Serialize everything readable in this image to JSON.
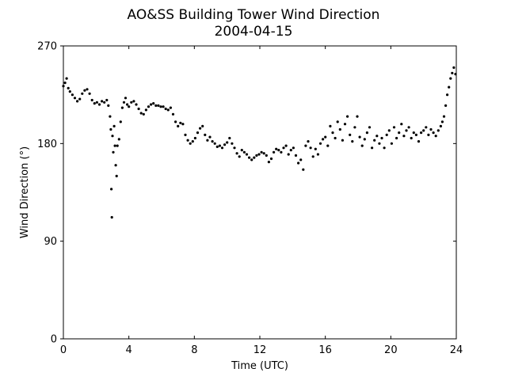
{
  "chart_data": {
    "type": "scatter",
    "title": "AO&SS Building Tower Wind Direction",
    "subtitle": "2004-04-15",
    "xlabel": "Time (UTC)",
    "ylabel": "Wind Direction (°)",
    "xlim": [
      0,
      24
    ],
    "ylim": [
      0,
      270
    ],
    "x_ticks": [
      0,
      4,
      8,
      12,
      16,
      20,
      24
    ],
    "y_ticks": [
      0,
      90,
      180,
      270
    ],
    "grid": false,
    "legend": "none",
    "marker_color": "#000000",
    "series": [
      {
        "points": [
          [
            0.0,
            233
          ],
          [
            0.1,
            236
          ],
          [
            0.2,
            240
          ],
          [
            0.3,
            231
          ],
          [
            0.4,
            228
          ],
          [
            0.55,
            225
          ],
          [
            0.7,
            222
          ],
          [
            0.85,
            219
          ],
          [
            1.0,
            221
          ],
          [
            1.15,
            226
          ],
          [
            1.3,
            229
          ],
          [
            1.45,
            230
          ],
          [
            1.6,
            226
          ],
          [
            1.75,
            220
          ],
          [
            1.9,
            217
          ],
          [
            2.05,
            218
          ],
          [
            2.2,
            216
          ],
          [
            2.35,
            219
          ],
          [
            2.5,
            218
          ],
          [
            2.65,
            220
          ],
          [
            2.75,
            215
          ],
          [
            2.85,
            205
          ],
          [
            2.9,
            193
          ],
          [
            2.93,
            138
          ],
          [
            2.96,
            112
          ],
          [
            3.0,
            187
          ],
          [
            3.05,
            172
          ],
          [
            3.1,
            196
          ],
          [
            3.15,
            178
          ],
          [
            3.2,
            160
          ],
          [
            3.25,
            150
          ],
          [
            3.3,
            178
          ],
          [
            3.4,
            184
          ],
          [
            3.5,
            200
          ],
          [
            3.6,
            213
          ],
          [
            3.7,
            218
          ],
          [
            3.8,
            222
          ],
          [
            3.9,
            216
          ],
          [
            4.0,
            214
          ],
          [
            4.15,
            218
          ],
          [
            4.3,
            219
          ],
          [
            4.45,
            216
          ],
          [
            4.6,
            212
          ],
          [
            4.75,
            208
          ],
          [
            4.9,
            207
          ],
          [
            5.05,
            211
          ],
          [
            5.2,
            214
          ],
          [
            5.35,
            216
          ],
          [
            5.5,
            217
          ],
          [
            5.65,
            215
          ],
          [
            5.8,
            215
          ],
          [
            5.95,
            214
          ],
          [
            6.1,
            214
          ],
          [
            6.25,
            212
          ],
          [
            6.4,
            211
          ],
          [
            6.55,
            213
          ],
          [
            6.7,
            207
          ],
          [
            6.85,
            200
          ],
          [
            7.0,
            196
          ],
          [
            7.15,
            199
          ],
          [
            7.3,
            198
          ],
          [
            7.45,
            188
          ],
          [
            7.6,
            183
          ],
          [
            7.75,
            180
          ],
          [
            7.9,
            182
          ],
          [
            8.05,
            185
          ],
          [
            8.2,
            190
          ],
          [
            8.35,
            194
          ],
          [
            8.5,
            196
          ],
          [
            8.65,
            188
          ],
          [
            8.8,
            183
          ],
          [
            8.95,
            186
          ],
          [
            9.1,
            182
          ],
          [
            9.25,
            180
          ],
          [
            9.4,
            177
          ],
          [
            9.55,
            178
          ],
          [
            9.7,
            176
          ],
          [
            9.85,
            179
          ],
          [
            10.0,
            181
          ],
          [
            10.15,
            185
          ],
          [
            10.3,
            180
          ],
          [
            10.45,
            176
          ],
          [
            10.6,
            171
          ],
          [
            10.75,
            168
          ],
          [
            10.9,
            174
          ],
          [
            11.05,
            172
          ],
          [
            11.2,
            170
          ],
          [
            11.35,
            167
          ],
          [
            11.5,
            165
          ],
          [
            11.65,
            167
          ],
          [
            11.8,
            169
          ],
          [
            11.95,
            170
          ],
          [
            12.1,
            172
          ],
          [
            12.25,
            171
          ],
          [
            12.4,
            169
          ],
          [
            12.55,
            163
          ],
          [
            12.7,
            166
          ],
          [
            12.85,
            172
          ],
          [
            13.0,
            175
          ],
          [
            13.15,
            174
          ],
          [
            13.3,
            172
          ],
          [
            13.45,
            176
          ],
          [
            13.6,
            178
          ],
          [
            13.75,
            170
          ],
          [
            13.9,
            174
          ],
          [
            14.05,
            176
          ],
          [
            14.2,
            169
          ],
          [
            14.35,
            162
          ],
          [
            14.5,
            165
          ],
          [
            14.65,
            156
          ],
          [
            14.8,
            178
          ],
          [
            14.95,
            182
          ],
          [
            15.1,
            176
          ],
          [
            15.25,
            168
          ],
          [
            15.4,
            175
          ],
          [
            15.55,
            170
          ],
          [
            15.7,
            180
          ],
          [
            15.85,
            184
          ],
          [
            16.0,
            186
          ],
          [
            16.15,
            178
          ],
          [
            16.3,
            196
          ],
          [
            16.45,
            190
          ],
          [
            16.6,
            185
          ],
          [
            16.75,
            200
          ],
          [
            16.9,
            193
          ],
          [
            17.05,
            183
          ],
          [
            17.2,
            198
          ],
          [
            17.35,
            205
          ],
          [
            17.5,
            188
          ],
          [
            17.65,
            182
          ],
          [
            17.8,
            195
          ],
          [
            17.95,
            205
          ],
          [
            18.1,
            186
          ],
          [
            18.25,
            178
          ],
          [
            18.4,
            184
          ],
          [
            18.55,
            190
          ],
          [
            18.7,
            195
          ],
          [
            18.85,
            176
          ],
          [
            19.0,
            183
          ],
          [
            19.15,
            187
          ],
          [
            19.3,
            180
          ],
          [
            19.45,
            185
          ],
          [
            19.6,
            176
          ],
          [
            19.75,
            188
          ],
          [
            19.9,
            192
          ],
          [
            20.05,
            180
          ],
          [
            20.2,
            195
          ],
          [
            20.35,
            185
          ],
          [
            20.5,
            190
          ],
          [
            20.65,
            198
          ],
          [
            20.8,
            187
          ],
          [
            20.95,
            192
          ],
          [
            21.1,
            195
          ],
          [
            21.25,
            185
          ],
          [
            21.4,
            190
          ],
          [
            21.55,
            188
          ],
          [
            21.7,
            182
          ],
          [
            21.85,
            190
          ],
          [
            22.0,
            192
          ],
          [
            22.15,
            195
          ],
          [
            22.3,
            188
          ],
          [
            22.45,
            193
          ],
          [
            22.6,
            190
          ],
          [
            22.75,
            187
          ],
          [
            22.9,
            192
          ],
          [
            23.05,
            196
          ],
          [
            23.15,
            200
          ],
          [
            23.25,
            205
          ],
          [
            23.35,
            215
          ],
          [
            23.45,
            225
          ],
          [
            23.55,
            232
          ],
          [
            23.65,
            240
          ],
          [
            23.75,
            245
          ],
          [
            23.85,
            250
          ],
          [
            23.95,
            244
          ]
        ]
      }
    ]
  }
}
